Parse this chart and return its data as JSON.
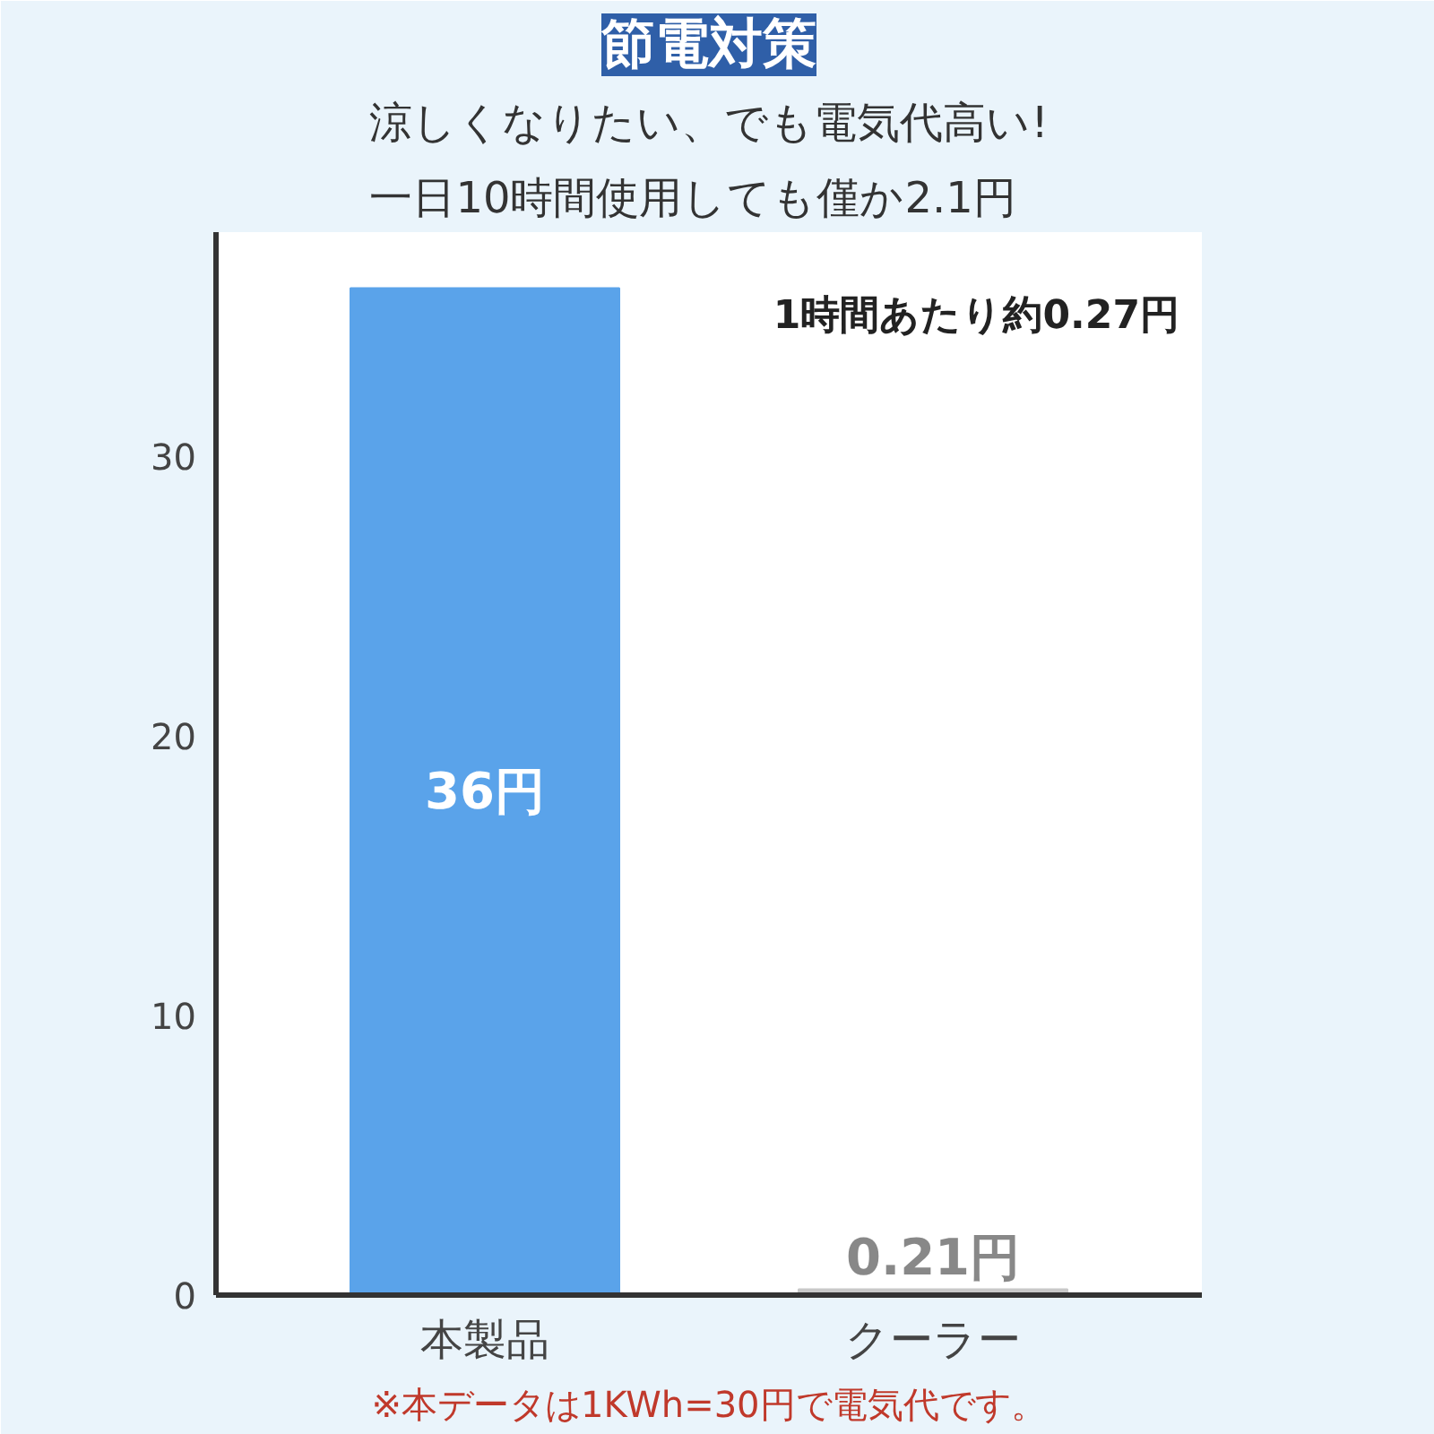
{
  "chart_data": {
    "type": "bar",
    "title": "節電対策",
    "subtitle": "涼しくなりたい、でも電気代高い!\n一日10時間使用しても僅か2.1円",
    "categories": [
      "本製品",
      "クーラー"
    ],
    "values": [
      36,
      0.21
    ],
    "colors": [
      "#5aa3ea",
      "#c8c8c8"
    ],
    "value_labels": [
      "36円",
      "0.21円"
    ],
    "ylim": [
      0,
      38
    ],
    "yticks": [
      0,
      10,
      20,
      30
    ],
    "grid": false,
    "annotations": [
      "1時間あたり約0.27円",
      "※本データは1KWh=30円で電気代です。"
    ]
  }
}
